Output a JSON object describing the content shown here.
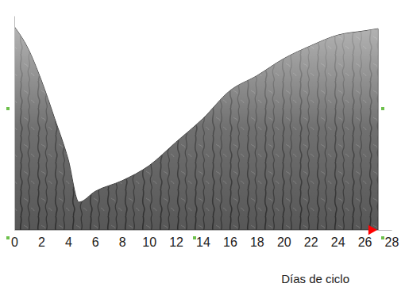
{
  "chart_data": {
    "type": "area",
    "x_label": "Días de ciclo",
    "x": [
      0,
      1,
      2,
      3,
      4,
      4.8,
      6,
      8,
      10,
      12,
      14,
      16,
      18,
      20,
      22,
      24,
      26,
      27
    ],
    "values": [
      95,
      85,
      70,
      52,
      33,
      13,
      18,
      23,
      30,
      41,
      52,
      65,
      72,
      80,
      86,
      91,
      93,
      94
    ],
    "color": "#575757",
    "xlim": [
      0,
      28
    ],
    "xticks": [
      0,
      2,
      4,
      6,
      8,
      10,
      12,
      14,
      16,
      18,
      20,
      22,
      24,
      26,
      28
    ],
    "ylim": [
      0,
      100
    ],
    "yticks": [],
    "tick_labels": "x",
    "annotations": [
      {
        "x": 26.5,
        "marker": "triangle",
        "color": "#ff0000"
      }
    ]
  }
}
